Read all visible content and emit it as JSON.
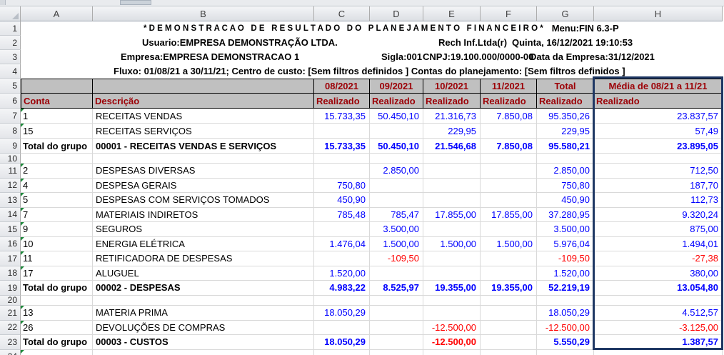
{
  "sheet": {
    "visible_rows": 24,
    "column_letters": [
      "A",
      "B",
      "C",
      "D",
      "E",
      "F",
      "G",
      "H"
    ]
  },
  "report_header": {
    "title": "* D E M O N S T R A C A O   D E   R E S U L T A D O   D O   P L A N E J A M E N T O   F I N A N C E I R O *",
    "menu": "Menu:FIN 6.3-P",
    "usuario": "Usuario:EMPRESA DEMONSTRAÇÃO LTDA.",
    "rech": "Rech Inf.Ltda(r)",
    "datetime": "Quinta, 16/12/2021 19:10:53",
    "empresa": "Empresa:EMPRESA DEMONSTRACAO 1",
    "sigla": "Sigla:001",
    "cnpj": "CNPJ:19.100.000/0000-00",
    "data_empresa": "Data da Empresa:31/12/2021",
    "fluxo": "Fluxo: 01/08/21 a 30/11/21; Centro de custo: [Sem filtros definidos ] Contas do planejamento: [Sem filtros definidos ]"
  },
  "table": {
    "conta_header": "Conta",
    "descricao_header": "Descrição",
    "realizado_header": "Realizado",
    "period_headers": [
      "08/2021",
      "09/2021",
      "10/2021",
      "11/2021",
      "Total",
      "Média de 08/21 a 11/21"
    ],
    "rows": [
      {
        "row": 7,
        "conta": "1",
        "descricao": "RECEITAS VENDAS",
        "values": [
          "15.733,35",
          "50.450,10",
          "21.316,73",
          "7.850,08",
          "95.350,26",
          "23.837,57"
        ],
        "flag": true,
        "total": false
      },
      {
        "row": 8,
        "conta": "15",
        "descricao": "RECEITAS SERVIÇOS",
        "values": [
          "",
          "",
          "229,95",
          "",
          "229,95",
          "57,49"
        ],
        "flag": true,
        "total": false
      },
      {
        "row": 9,
        "conta": "Total do grupo",
        "descricao": "00001 - RECEITAS VENDAS E SERVIÇOS",
        "values": [
          "15.733,35",
          "50.450,10",
          "21.546,68",
          "7.850,08",
          "95.580,21",
          "23.895,05"
        ],
        "flag": false,
        "total": true
      },
      {
        "row": 10,
        "conta": "",
        "descricao": "",
        "values": [
          "",
          "",
          "",
          "",
          "",
          ""
        ],
        "flag": false,
        "total": false
      },
      {
        "row": 11,
        "conta": "2",
        "descricao": "DESPESAS DIVERSAS",
        "values": [
          "",
          "2.850,00",
          "",
          "",
          "2.850,00",
          "712,50"
        ],
        "flag": true,
        "total": false
      },
      {
        "row": 12,
        "conta": "4",
        "descricao": "DESPESA GERAIS",
        "values": [
          "750,80",
          "",
          "",
          "",
          "750,80",
          "187,70"
        ],
        "flag": true,
        "total": false
      },
      {
        "row": 13,
        "conta": "5",
        "descricao": "DESPESAS COM SERVIÇOS TOMADOS",
        "values": [
          "450,90",
          "",
          "",
          "",
          "450,90",
          "112,73"
        ],
        "flag": true,
        "total": false
      },
      {
        "row": 14,
        "conta": "7",
        "descricao": "MATERIAIS INDIRETOS",
        "values": [
          "785,48",
          "785,47",
          "17.855,00",
          "17.855,00",
          "37.280,95",
          "9.320,24"
        ],
        "flag": true,
        "total": false
      },
      {
        "row": 15,
        "conta": "9",
        "descricao": "SEGUROS",
        "values": [
          "",
          "3.500,00",
          "",
          "",
          "3.500,00",
          "875,00"
        ],
        "flag": true,
        "total": false
      },
      {
        "row": 16,
        "conta": "10",
        "descricao": "ENERGIA ELÉTRICA",
        "values": [
          "1.476,04",
          "1.500,00",
          "1.500,00",
          "1.500,00",
          "5.976,04",
          "1.494,01"
        ],
        "flag": true,
        "total": false
      },
      {
        "row": 17,
        "conta": "11",
        "descricao": "RETIFICADORA DE DESPESAS",
        "values": [
          "",
          "-109,50",
          "",
          "",
          "-109,50",
          "-27,38"
        ],
        "flag": true,
        "total": false
      },
      {
        "row": 18,
        "conta": "17",
        "descricao": "ALUGUEL",
        "values": [
          "1.520,00",
          "",
          "",
          "",
          "1.520,00",
          "380,00"
        ],
        "flag": true,
        "total": false
      },
      {
        "row": 19,
        "conta": "Total do grupo",
        "descricao": "00002 - DESPESAS",
        "values": [
          "4.983,22",
          "8.525,97",
          "19.355,00",
          "19.355,00",
          "52.219,19",
          "13.054,80"
        ],
        "flag": false,
        "total": true
      },
      {
        "row": 20,
        "conta": "",
        "descricao": "",
        "values": [
          "",
          "",
          "",
          "",
          "",
          ""
        ],
        "flag": false,
        "total": false
      },
      {
        "row": 21,
        "conta": "13",
        "descricao": "MATERIA PRIMA",
        "values": [
          "18.050,29",
          "",
          "",
          "",
          "18.050,29",
          "4.512,57"
        ],
        "flag": true,
        "total": false
      },
      {
        "row": 22,
        "conta": "26",
        "descricao": "DEVOLUÇÕES DE COMPRAS",
        "values": [
          "",
          "",
          "-12.500,00",
          "",
          "-12.500,00",
          "-3.125,00"
        ],
        "flag": true,
        "total": false
      },
      {
        "row": 23,
        "conta": "Total do grupo",
        "descricao": "00003 - CUSTOS",
        "values": [
          "18.050,29",
          "",
          "-12.500,00",
          "",
          "5.550,29",
          "1.387,57"
        ],
        "flag": false,
        "total": true
      },
      {
        "row": 24,
        "conta": "",
        "descricao": "",
        "values": [
          "",
          "",
          "",
          "",
          "",
          ""
        ],
        "flag": true,
        "total": false
      }
    ]
  },
  "colors": {
    "value_blue": "#0000FF",
    "negative_red": "#FF0000",
    "header_dark_red": "#9C0006",
    "header_gray_fill": "#C0C0C0",
    "selection_border_navy": "#1F3864",
    "flag_green": "#1E8A3C"
  }
}
